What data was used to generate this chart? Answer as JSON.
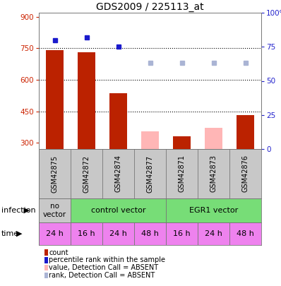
{
  "title": "GDS2009 / 225113_at",
  "samples": [
    "GSM42875",
    "GSM42872",
    "GSM42874",
    "GSM42877",
    "GSM42871",
    "GSM42873",
    "GSM42876"
  ],
  "count_values": [
    740,
    730,
    535,
    null,
    330,
    null,
    430
  ],
  "count_absent": [
    null,
    null,
    null,
    355,
    null,
    370,
    null
  ],
  "rank_values": [
    80,
    82,
    75,
    null,
    null,
    null,
    null
  ],
  "rank_absent": [
    null,
    null,
    null,
    63,
    63,
    63,
    63
  ],
  "ylim_left": [
    270,
    920
  ],
  "ylim_right": [
    0,
    100
  ],
  "yticks_left": [
    300,
    450,
    600,
    750,
    900
  ],
  "yticks_right": [
    0,
    25,
    50,
    75,
    100
  ],
  "hlines": [
    750,
    600,
    450
  ],
  "time_labels": [
    "24 h",
    "16 h",
    "24 h",
    "48 h",
    "16 h",
    "24 h",
    "48 h"
  ],
  "time_color": "#ee82ee",
  "bar_color_present": "#bb2200",
  "bar_color_absent": "#ffb6b6",
  "dot_color_present": "#1a1acc",
  "dot_color_absent": "#aab4d4",
  "left_axis_color": "#cc2200",
  "right_axis_color": "#2222cc",
  "sample_bg_color": "#c8c8c8",
  "infection_color_no": "#c8c8c8",
  "infection_color_ctrl": "#77dd77",
  "infection_color_egr1": "#77dd77",
  "legend_items": [
    {
      "color": "#bb2200",
      "label": "count"
    },
    {
      "color": "#1a1acc",
      "label": "percentile rank within the sample"
    },
    {
      "color": "#ffb6b6",
      "label": "value, Detection Call = ABSENT"
    },
    {
      "color": "#aab4d4",
      "label": "rank, Detection Call = ABSENT"
    }
  ]
}
